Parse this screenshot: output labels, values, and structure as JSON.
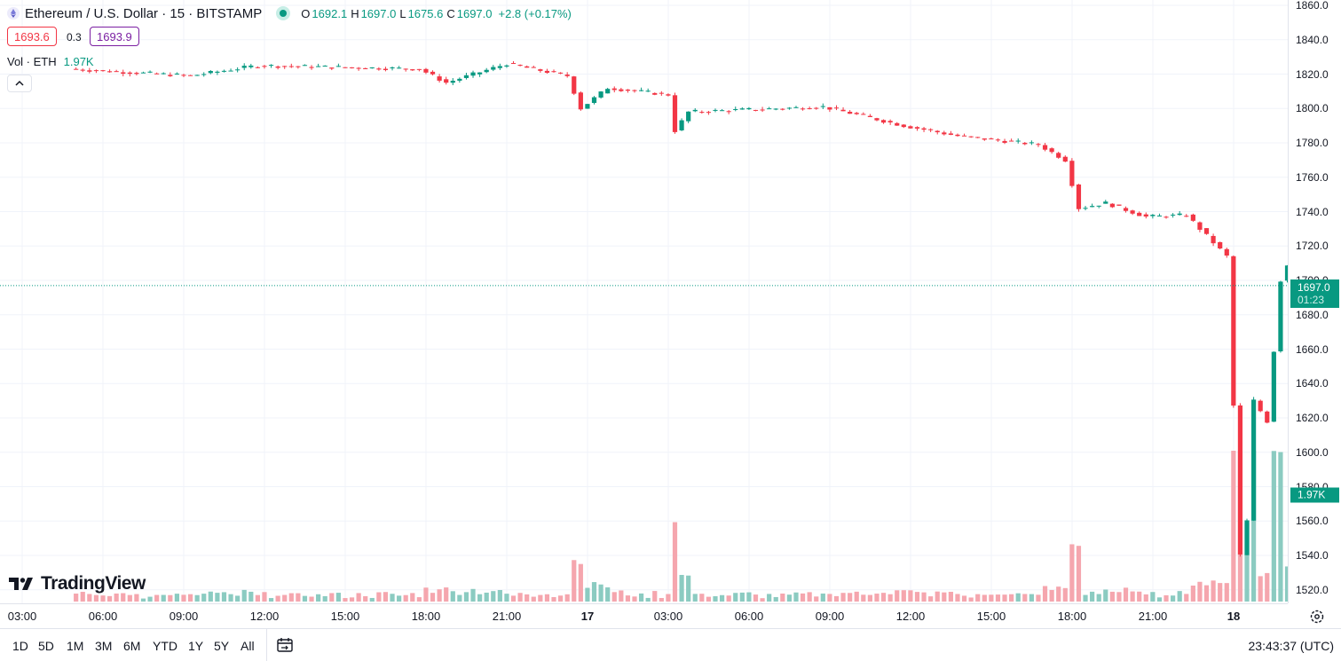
{
  "symbol": {
    "title": "Ethereum / U.S. Dollar · 15 · BITSTAMP"
  },
  "ohlc": {
    "o_label": "O",
    "o": "1692.1",
    "h_label": "H",
    "h": "1697.0",
    "l_label": "L",
    "l": "1675.6",
    "c_label": "C",
    "c": "1697.0",
    "change": "+2.8 (+0.17%)"
  },
  "sell_price": "1693.6",
  "spread": "0.3",
  "buy_price": "1693.9",
  "volume_legend": {
    "label": "Vol · ETH",
    "value": "1.97K"
  },
  "price_axis": {
    "ticks": [
      "1860.0",
      "1840.0",
      "1820.0",
      "1800.0",
      "1780.0",
      "1760.0",
      "1740.0",
      "1720.0",
      "1700.0",
      "1680.0",
      "1660.0",
      "1640.0",
      "1620.0",
      "1600.0",
      "1580.0",
      "1560.0",
      "1540.0",
      "1520.0"
    ],
    "last_price": "1697.0",
    "countdown": "01:23",
    "volume_tag": "1.97K"
  },
  "time_axis": [
    {
      "label": "03:00"
    },
    {
      "label": "06:00"
    },
    {
      "label": "09:00"
    },
    {
      "label": "12:00"
    },
    {
      "label": "15:00"
    },
    {
      "label": "18:00"
    },
    {
      "label": "21:00"
    },
    {
      "label": "17",
      "bold": true
    },
    {
      "label": "03:00"
    },
    {
      "label": "06:00"
    },
    {
      "label": "09:00"
    },
    {
      "label": "12:00"
    },
    {
      "label": "15:00"
    },
    {
      "label": "18:00"
    },
    {
      "label": "21:00"
    },
    {
      "label": "18",
      "bold": true
    }
  ],
  "ranges": [
    "1D",
    "5D",
    "1M",
    "3M",
    "6M",
    "YTD",
    "1Y",
    "5Y",
    "All"
  ],
  "clock": "23:43:37 (UTC)",
  "brand": "TradingView",
  "colors": {
    "up": "#089981",
    "down": "#f23645",
    "up_volume": "#8bcbc1",
    "down_volume": "#f5a6ae",
    "accent": "#2962ff"
  },
  "chart_data": {
    "type": "candlestick",
    "symbol": "ETHUSD",
    "interval": "15",
    "ylim": [
      1515,
      1862
    ],
    "key_points": [
      {
        "time": "02:00",
        "price": 1823
      },
      {
        "time": "06:30",
        "price": 1819
      },
      {
        "time": "09:00",
        "price": 1825
      },
      {
        "time": "15:00",
        "price": 1823
      },
      {
        "time": "16:00",
        "price": 1815
      },
      {
        "time": "18:15",
        "price": 1826
      },
      {
        "time": "20:30",
        "price": 1819
      },
      {
        "time": "21:00",
        "price": 1800
      },
      {
        "time": "22:00",
        "price": 1812
      },
      {
        "time": "00:15",
        "price": 1808
      },
      {
        "time": "00:30",
        "price": 1787
      },
      {
        "time": "01:00",
        "price": 1798
      },
      {
        "time": "06:00",
        "price": 1801
      },
      {
        "time": "09:00",
        "price": 1790
      },
      {
        "time": "11:00",
        "price": 1784
      },
      {
        "time": "14:00",
        "price": 1779
      },
      {
        "time": "15:00",
        "price": 1770
      },
      {
        "time": "15:30",
        "price": 1742
      },
      {
        "time": "16:30",
        "price": 1745
      },
      {
        "time": "18:00",
        "price": 1737
      },
      {
        "time": "19:30",
        "price": 1738
      },
      {
        "time": "21:00",
        "price": 1714
      },
      {
        "time": "21:30",
        "price": 1540
      },
      {
        "time": "21:45",
        "price": 1560
      },
      {
        "time": "22:00",
        "price": 1630
      },
      {
        "time": "22:30",
        "price": 1618
      },
      {
        "time": "23:00",
        "price": 1700
      },
      {
        "time": "23:15",
        "price": 1709
      },
      {
        "time": "23:30",
        "price": 1692
      },
      {
        "time": "23:45",
        "price": 1697
      }
    ],
    "last": {
      "open": 1692.1,
      "high": 1697.0,
      "low": 1675.6,
      "close": 1697.0
    },
    "volume_last": "1.97K"
  }
}
